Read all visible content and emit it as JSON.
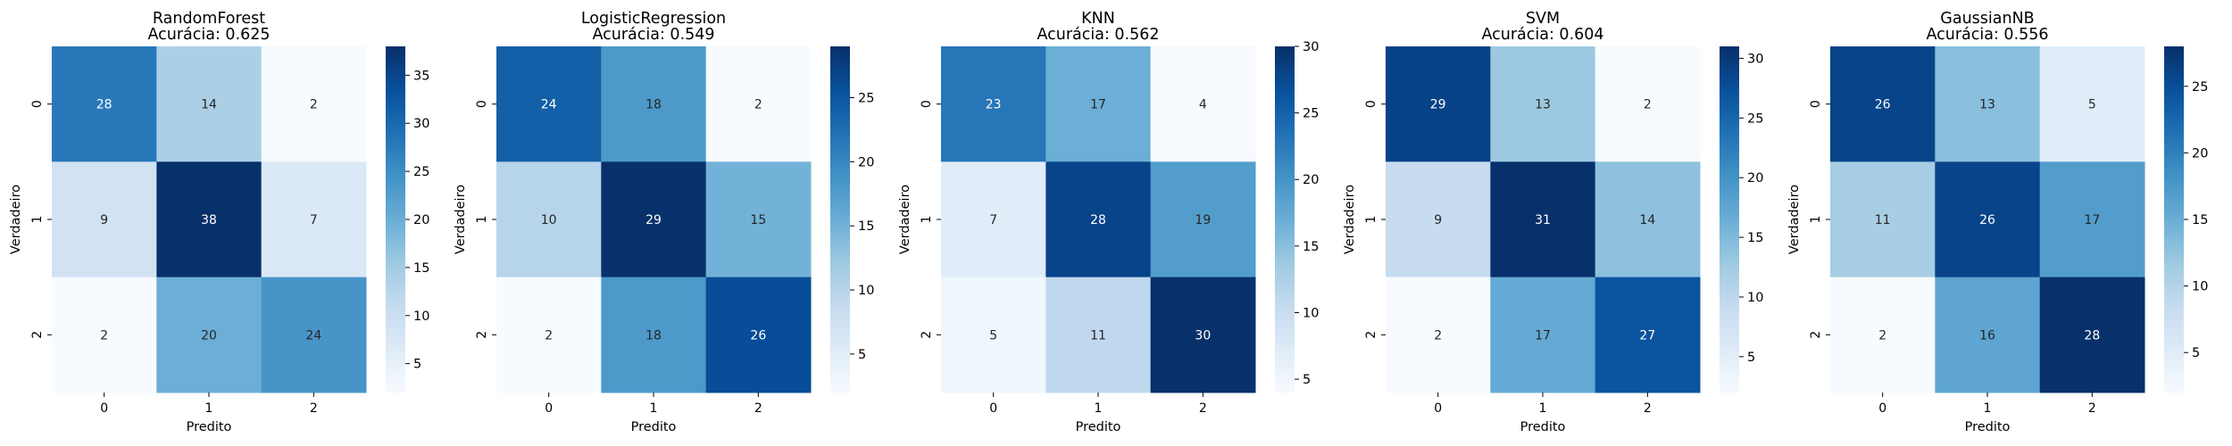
{
  "chart_data": [
    {
      "type": "heatmap",
      "title": "RandomForest",
      "subtitle": "Acurácia: 0.625",
      "xlabel": "Predito",
      "ylabel": "Verdadeiro",
      "x_categories": [
        "0",
        "1",
        "2"
      ],
      "y_categories": [
        "0",
        "1",
        "2"
      ],
      "values": [
        [
          28,
          14,
          2
        ],
        [
          9,
          38,
          7
        ],
        [
          2,
          20,
          24
        ]
      ],
      "color_range": [
        2,
        38
      ],
      "colorbar_ticks": [
        5,
        10,
        15,
        20,
        25,
        30,
        35
      ]
    },
    {
      "type": "heatmap",
      "title": "LogisticRegression",
      "subtitle": "Acurácia: 0.549",
      "xlabel": "Predito",
      "ylabel": "Verdadeiro",
      "x_categories": [
        "0",
        "1",
        "2"
      ],
      "y_categories": [
        "0",
        "1",
        "2"
      ],
      "values": [
        [
          24,
          18,
          2
        ],
        [
          10,
          29,
          15
        ],
        [
          2,
          18,
          26
        ]
      ],
      "color_range": [
        2,
        29
      ],
      "colorbar_ticks": [
        5,
        10,
        15,
        20,
        25
      ]
    },
    {
      "type": "heatmap",
      "title": "KNN",
      "subtitle": "Acurácia: 0.562",
      "xlabel": "Predito",
      "ylabel": "Verdadeiro",
      "x_categories": [
        "0",
        "1",
        "2"
      ],
      "y_categories": [
        "0",
        "1",
        "2"
      ],
      "values": [
        [
          23,
          17,
          4
        ],
        [
          7,
          28,
          19
        ],
        [
          5,
          11,
          30
        ]
      ],
      "color_range": [
        4,
        30
      ],
      "colorbar_ticks": [
        5,
        10,
        15,
        20,
        25,
        30
      ]
    },
    {
      "type": "heatmap",
      "title": "SVM",
      "subtitle": "Acurácia: 0.604",
      "xlabel": "Predito",
      "ylabel": "Verdadeiro",
      "x_categories": [
        "0",
        "1",
        "2"
      ],
      "y_categories": [
        "0",
        "1",
        "2"
      ],
      "values": [
        [
          29,
          13,
          2
        ],
        [
          9,
          31,
          14
        ],
        [
          2,
          17,
          27
        ]
      ],
      "color_range": [
        2,
        31
      ],
      "colorbar_ticks": [
        5,
        10,
        15,
        20,
        25,
        30
      ]
    },
    {
      "type": "heatmap",
      "title": "GaussianNB",
      "subtitle": "Acurácia: 0.556",
      "xlabel": "Predito",
      "ylabel": "Verdadeiro",
      "x_categories": [
        "0",
        "1",
        "2"
      ],
      "y_categories": [
        "0",
        "1",
        "2"
      ],
      "values": [
        [
          26,
          13,
          5
        ],
        [
          11,
          26,
          17
        ],
        [
          2,
          16,
          28
        ]
      ],
      "color_range": [
        2,
        28
      ],
      "colorbar_ticks": [
        5,
        10,
        15,
        20,
        25
      ]
    }
  ],
  "colormap": {
    "name": "Blues",
    "stops": [
      "#f7fbff",
      "#deebf7",
      "#c6dbef",
      "#9ecae1",
      "#6baed6",
      "#4292c6",
      "#2171b5",
      "#08519c",
      "#08306b"
    ]
  }
}
